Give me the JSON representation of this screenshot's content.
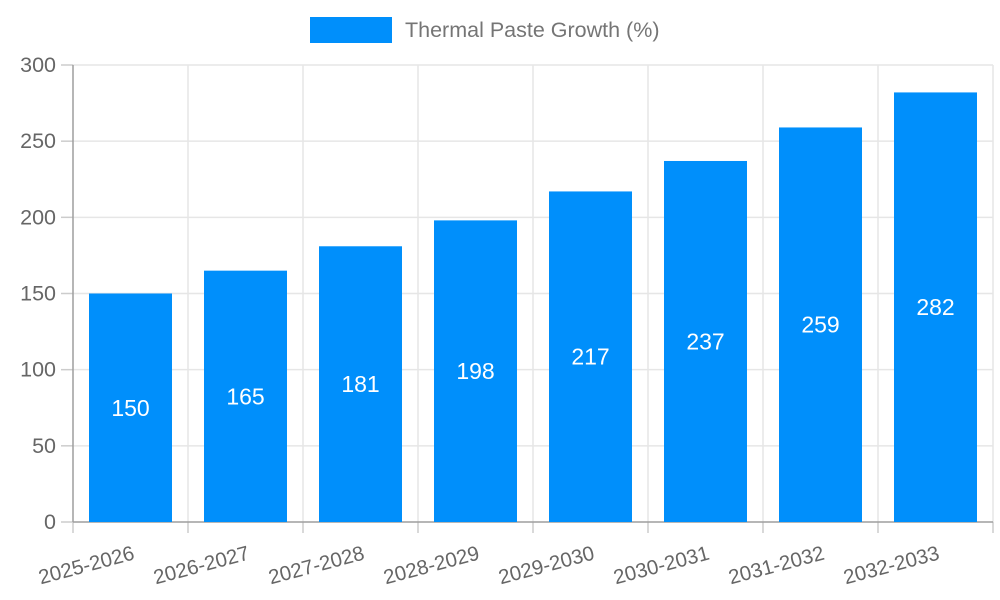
{
  "chart_data": {
    "type": "bar",
    "title": "",
    "legend": {
      "label": "Thermal Paste Growth (%)",
      "position": "top"
    },
    "categories": [
      "2025-2026",
      "2026-2027",
      "2027-2028",
      "2028-2029",
      "2029-2030",
      "2030-2031",
      "2031-2032",
      "2032-2033"
    ],
    "series": [
      {
        "name": "Thermal Paste Growth (%)",
        "values": [
          150,
          165,
          181,
          198,
          217,
          237,
          259,
          282
        ]
      }
    ],
    "xlabel": "",
    "ylabel": "",
    "ylim": [
      0,
      300
    ],
    "yticks": [
      0,
      50,
      100,
      150,
      200,
      250,
      300
    ],
    "grid": true,
    "bar_value_labels": true,
    "x_label_rotation_deg": -15,
    "colors": {
      "bar": "#008FFB",
      "bar_value_label": "#ffffff",
      "axis_line": "#9e9e9e",
      "gridline": "#e6e6e6",
      "tick": "#cccccc",
      "axis_label": "#666666",
      "legend_text": "#757575",
      "background": "#ffffff"
    }
  }
}
